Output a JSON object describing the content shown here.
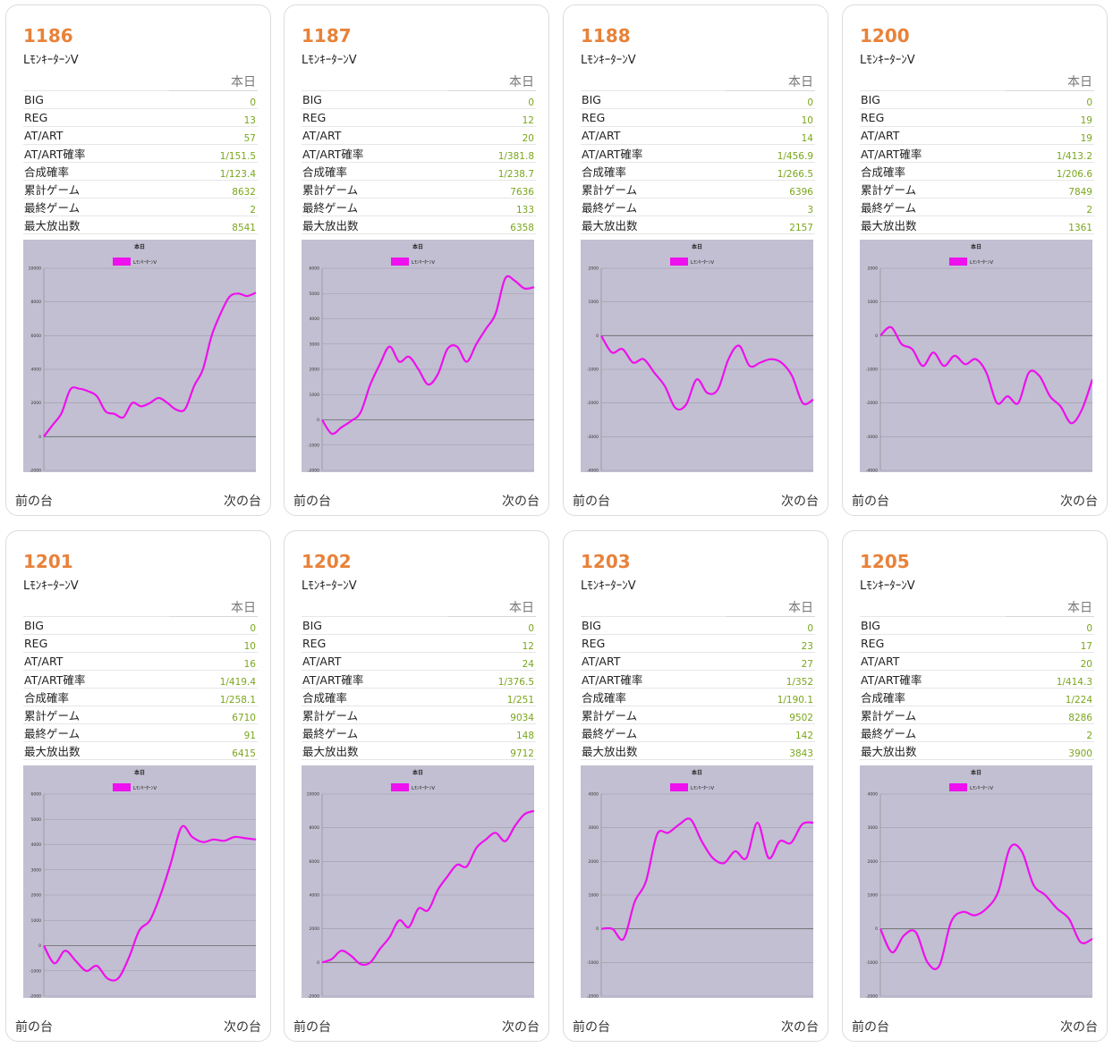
{
  "labels": {
    "today_header": "本日",
    "big": "BIG",
    "reg": "REG",
    "atart": "AT/ART",
    "atart_rate": "AT/ART確率",
    "combined_rate": "合成確率",
    "total_games": "累計ゲーム",
    "last_game": "最終ゲーム",
    "max_payout": "最大放出数",
    "prev": "前の台",
    "next": "次の台"
  },
  "colors": {
    "accent_number": "#e8823a",
    "value_green": "#7aa61c",
    "graph_bg": "#c1bfd1",
    "series_line": "#ee10ee"
  },
  "machines": [
    {
      "number": "1186",
      "name": "LﾓﾝｷｰﾀｰﾝⅤ",
      "big": "0",
      "reg": "13",
      "atart": "57",
      "atart_rate": "1/151.5",
      "combined_rate": "1/123.4",
      "total_games": "8632",
      "last_game": "2",
      "max_payout": "8541",
      "chart_data": {
        "type": "line",
        "title": "本日",
        "legend": "LﾓﾝｷｰﾀｰﾝⅤ",
        "ylim": [
          -2000,
          10000
        ],
        "yticks": [
          "10000",
          "8000",
          "6000",
          "4000",
          "2000",
          "0",
          "-2000"
        ],
        "series": [
          {
            "name": "LﾓﾝｷｰﾀｰﾝⅤ",
            "values": [
              0,
              700,
              1400,
              2800,
              2850,
              2700,
              2400,
              1500,
              1350,
              1150,
              2000,
              1800,
              2000,
              2300,
              2000,
              1600,
              1650,
              3000,
              4000,
              6000,
              7300,
              8300,
              8500,
              8350,
              8550
            ]
          }
        ]
      }
    },
    {
      "number": "1187",
      "name": "LﾓﾝｷｰﾀｰﾝⅤ",
      "big": "0",
      "reg": "12",
      "atart": "20",
      "atart_rate": "1/381.8",
      "combined_rate": "1/238.7",
      "total_games": "7636",
      "last_game": "133",
      "max_payout": "6358",
      "chart_data": {
        "type": "line",
        "title": "本日",
        "legend": "LﾓﾝｷｰﾀｰﾝⅤ",
        "ylim": [
          -2000,
          6000
        ],
        "yticks": [
          "6000",
          "5000",
          "4000",
          "3000",
          "2000",
          "1000",
          "0",
          "-1000",
          "-2000"
        ],
        "series": [
          {
            "name": "LﾓﾝｷｰﾀｰﾝⅤ",
            "values": [
              0,
              -550,
              -300,
              -50,
              300,
              1400,
              2200,
              2900,
              2300,
              2500,
              2000,
              1400,
              1800,
              2800,
              2900,
              2300,
              3000,
              3600,
              4200,
              5600,
              5500,
              5200,
              5250
            ]
          }
        ]
      }
    },
    {
      "number": "1188",
      "name": "LﾓﾝｷｰﾀｰﾝⅤ",
      "big": "0",
      "reg": "10",
      "atart": "14",
      "atart_rate": "1/456.9",
      "combined_rate": "1/266.5",
      "total_games": "6396",
      "last_game": "3",
      "max_payout": "2157",
      "chart_data": {
        "type": "line",
        "title": "本日",
        "legend": "LﾓﾝｷｰﾀｰﾝⅤ",
        "ylim": [
          -4000,
          2000
        ],
        "yticks": [
          "2000",
          "1000",
          "0",
          "-1000",
          "-2000",
          "-3000",
          "-4000"
        ],
        "series": [
          {
            "name": "LﾓﾝｷｰﾀｰﾝⅤ",
            "values": [
              0,
              -500,
              -400,
              -800,
              -700,
              -1100,
              -1500,
              -2150,
              -2050,
              -1300,
              -1700,
              -1600,
              -700,
              -300,
              -900,
              -800,
              -700,
              -800,
              -1200,
              -2000,
              -1900
            ]
          }
        ]
      }
    },
    {
      "number": "1200",
      "name": "LﾓﾝｷｰﾀｰﾝⅤ",
      "big": "0",
      "reg": "19",
      "atart": "19",
      "atart_rate": "1/413.2",
      "combined_rate": "1/206.6",
      "total_games": "7849",
      "last_game": "2",
      "max_payout": "1361",
      "chart_data": {
        "type": "line",
        "title": "本日",
        "legend": "LﾓﾝｷｰﾀｰﾝⅤ",
        "ylim": [
          -4000,
          2000
        ],
        "yticks": [
          "2000",
          "1000",
          "0",
          "-1000",
          "-2000",
          "-3000",
          "-4000"
        ],
        "series": [
          {
            "name": "LﾓﾝｷｰﾀｰﾝⅤ",
            "values": [
              0,
              250,
              -250,
              -400,
              -900,
              -500,
              -900,
              -600,
              -850,
              -700,
              -1100,
              -2000,
              -1800,
              -2000,
              -1100,
              -1200,
              -1800,
              -2100,
              -2600,
              -2200,
              -1300
            ]
          }
        ]
      }
    },
    {
      "number": "1201",
      "name": "LﾓﾝｷｰﾀｰﾝⅤ",
      "big": "0",
      "reg": "10",
      "atart": "16",
      "atart_rate": "1/419.4",
      "combined_rate": "1/258.1",
      "total_games": "6710",
      "last_game": "91",
      "max_payout": "6415",
      "chart_data": {
        "type": "line",
        "title": "本日",
        "legend": "LﾓﾝｷｰﾀｰﾝⅤ",
        "ylim": [
          -2000,
          6000
        ],
        "yticks": [
          "6000",
          "5000",
          "4000",
          "3000",
          "2000",
          "1000",
          "0",
          "-1000",
          "-2000"
        ],
        "series": [
          {
            "name": "LﾓﾝｷｰﾀｰﾝⅤ",
            "values": [
              0,
              -700,
              -200,
              -600,
              -1000,
              -800,
              -1300,
              -1300,
              -500,
              600,
              1000,
              2000,
              3300,
              4700,
              4300,
              4100,
              4200,
              4150,
              4300,
              4250,
              4200
            ]
          }
        ]
      }
    },
    {
      "number": "1202",
      "name": "LﾓﾝｷｰﾀｰﾝⅤ",
      "big": "0",
      "reg": "12",
      "atart": "24",
      "atart_rate": "1/376.5",
      "combined_rate": "1/251",
      "total_games": "9034",
      "last_game": "148",
      "max_payout": "9712",
      "chart_data": {
        "type": "line",
        "title": "本日",
        "legend": "LﾓﾝｷｰﾀｰﾝⅤ",
        "ylim": [
          -2000,
          10000
        ],
        "yticks": [
          "10000",
          "8000",
          "6000",
          "4000",
          "2000",
          "0",
          "-2000"
        ],
        "series": [
          {
            "name": "LﾓﾝｷｰﾀｰﾝⅤ",
            "values": [
              0,
              200,
              700,
              400,
              -100,
              0,
              800,
              1500,
              2500,
              2100,
              3200,
              3100,
              4300,
              5100,
              5800,
              5700,
              6800,
              7300,
              7700,
              7200,
              8100,
              8800,
              9000
            ]
          }
        ]
      }
    },
    {
      "number": "1203",
      "name": "LﾓﾝｷｰﾀｰﾝⅤ",
      "big": "0",
      "reg": "23",
      "atart": "27",
      "atart_rate": "1/352",
      "combined_rate": "1/190.1",
      "total_games": "9502",
      "last_game": "142",
      "max_payout": "3843",
      "chart_data": {
        "type": "line",
        "title": "本日",
        "legend": "LﾓﾝｷｰﾀｰﾝⅤ",
        "ylim": [
          -2000,
          4000
        ],
        "yticks": [
          "4000",
          "3000",
          "2000",
          "1000",
          "0",
          "-1000",
          "-2000"
        ],
        "series": [
          {
            "name": "LﾓﾝｷｰﾀｰﾝⅤ",
            "values": [
              0,
              0,
              -300,
              800,
              1400,
              2800,
              2850,
              3100,
              3250,
              2600,
              2100,
              1950,
              2300,
              2100,
              3150,
              2100,
              2600,
              2550,
              3100,
              3150
            ]
          }
        ]
      }
    },
    {
      "number": "1205",
      "name": "LﾓﾝｷｰﾀｰﾝⅤ",
      "big": "0",
      "reg": "17",
      "atart": "20",
      "atart_rate": "1/414.3",
      "combined_rate": "1/224",
      "total_games": "8286",
      "last_game": "2",
      "max_payout": "3900",
      "chart_data": {
        "type": "line",
        "title": "本日",
        "legend": "LﾓﾝｷｰﾀｰﾝⅤ",
        "ylim": [
          -2000,
          4000
        ],
        "yticks": [
          "4000",
          "3000",
          "2000",
          "1000",
          "0",
          "-1000",
          "-2000"
        ],
        "series": [
          {
            "name": "LﾓﾝｷｰﾀｰﾝⅤ",
            "values": [
              0,
              -700,
              -200,
              -100,
              -1000,
              -1100,
              200,
              500,
              400,
              600,
              1100,
              2400,
              2300,
              1300,
              1000,
              600,
              300,
              -400,
              -300
            ]
          }
        ]
      }
    }
  ]
}
